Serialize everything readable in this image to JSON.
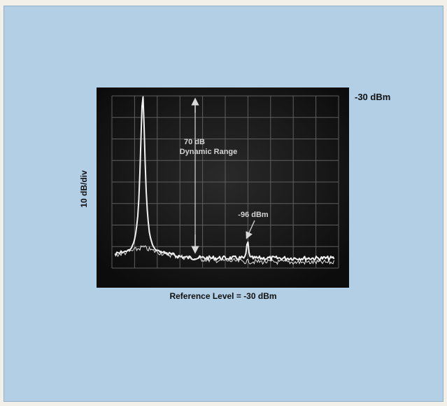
{
  "reference_marker": "-30 dBm",
  "y_axis_label": "10 dB/div",
  "caption": "Reference Level = -30 dBm",
  "annotations": {
    "range_value": "70 dB",
    "range_label": "Dynamic Range",
    "spur_label": "-96 dBm"
  },
  "colors": {
    "panel": "#b2cfe6",
    "screen": "#141414",
    "graticule": "#5e5e5e",
    "trace": "#f2f2f2"
  }
}
